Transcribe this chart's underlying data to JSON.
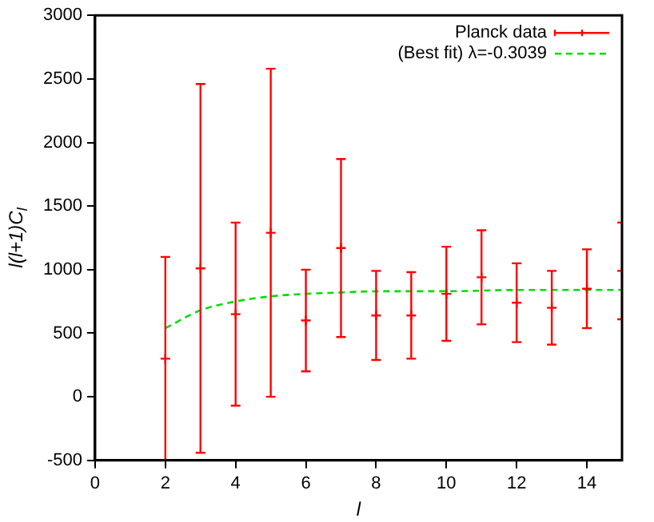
{
  "chart_data": {
    "type": "scatter",
    "xlabel": "l",
    "ylabel": "l(l+1)C$_{l}$",
    "xlim": [
      0,
      15
    ],
    "xticks": [
      0,
      2,
      4,
      6,
      8,
      10,
      12,
      14
    ],
    "ylim": [
      -500,
      3000
    ],
    "yticks": [
      -500,
      0,
      500,
      1000,
      1500,
      2000,
      2500,
      3000
    ],
    "grid": false,
    "legend": "top right",
    "series": [
      {
        "name": "Planck data",
        "color": "#ff0000",
        "marker": "cross",
        "x": [
          2,
          3,
          4,
          5,
          6,
          7,
          8,
          9,
          10,
          11,
          12,
          13,
          14,
          15
        ],
        "values": [
          300,
          1010,
          650,
          1290,
          600,
          1170,
          640,
          640,
          810,
          940,
          740,
          700,
          850,
          990
        ],
        "errors": [
          800,
          1450,
          720,
          1290,
          400,
          700,
          350,
          340,
          370,
          370,
          310,
          290,
          310,
          380
        ]
      },
      {
        "name": "(Best fit) λ=-0.3039",
        "type": "line",
        "line_style": "dashed",
        "color": "#00dd00",
        "x": [
          2,
          3,
          4,
          5,
          6,
          7,
          8,
          10,
          12,
          15
        ],
        "values": [
          540,
          680,
          750,
          790,
          810,
          820,
          830,
          830,
          840,
          840
        ]
      }
    ]
  }
}
